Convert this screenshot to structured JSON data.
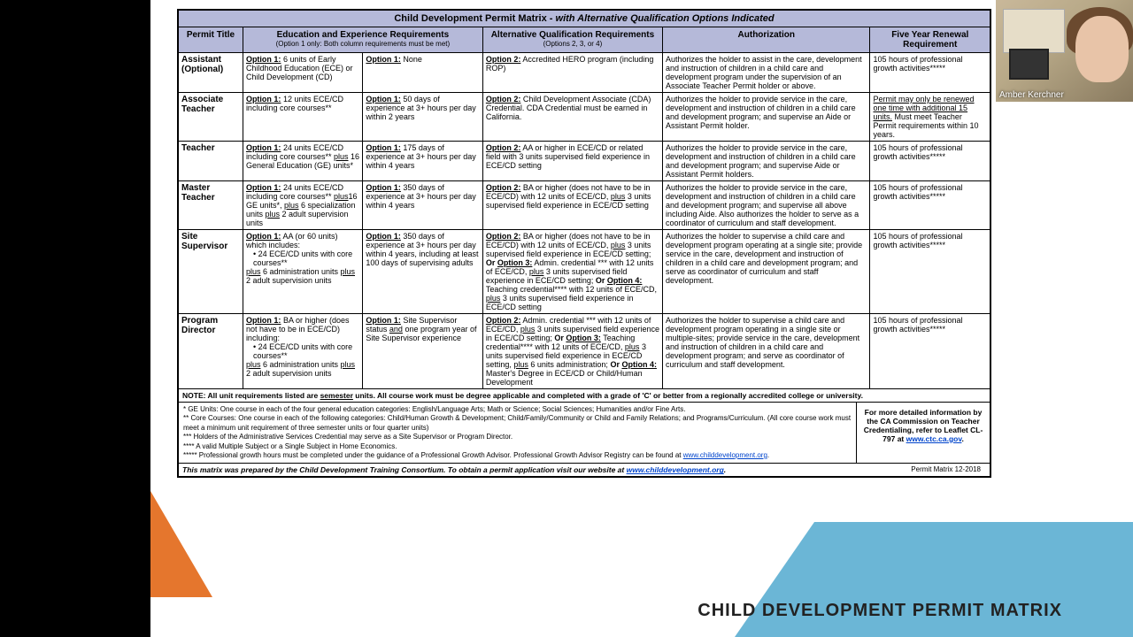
{
  "footerTitle": "CHILD DEVELOPMENT PERMIT MATRIX",
  "webcamName": "Amber Kerchner",
  "title": {
    "main": "Child Development Permit Matrix - ",
    "ital": "with Alternative Qualification Options Indicated"
  },
  "headers": {
    "c1": "Permit Title",
    "c2": "Education and Experience Requirements",
    "c2sub": "(Option 1 only: Both column requirements must be met)",
    "c3": "Alternative Qualification Requirements",
    "c3sub": "(Options 2, 3, or 4)",
    "c4": "Authorization",
    "c5": "Five Year Renewal Requirement"
  },
  "rows": [
    {
      "title": "Assistant (Optional)",
      "eduA": "<span class='u b'>Option 1:</span> 6 units of Early Childhood Education (ECE) or Child Development (CD)",
      "eduB": "<span class='u b'>Option 1:</span> None",
      "alt": "<span class='u b'>Option 2:</span> Accredited HERO program (including ROP)",
      "auth": "Authorizes the holder to assist in the care, development and instruction of children in a child care and development program under the supervision of an Associate Teacher Permit holder or above.",
      "renew": "105 hours of professional growth activities*****"
    },
    {
      "title": "Associate Teacher",
      "eduA": "<span class='u b'>Option 1:</span> 12 units ECE/CD including core courses**",
      "eduB": "<span class='u b'>Option 1:</span> 50 days of experience at 3+ hours per day within 2 years",
      "alt": "<span class='u b'>Option 2:</span> Child Development Associate (CDA) Credential. CDA Credential must be earned in California.",
      "auth": "Authorizes the holder to provide service in the care, development and instruction of children in a child care and development program; and supervise an Aide or Assistant Permit holder.",
      "renew": "<span class='u'>Permit may only be renewed one time with additional 15 units.</span> Must meet Teacher Permit requirements within 10 years."
    },
    {
      "title": "Teacher",
      "eduA": "<span class='u b'>Option 1:</span> 24 units ECE/CD including core courses** <span class='u'>plus</span> 16 General Education (GE) units*",
      "eduB": "<span class='u b'>Option 1:</span> 175 days of experience at 3+ hours per day within 4 years",
      "alt": "<span class='u b'>Option 2:</span> AA or higher in ECE/CD or related field with 3 units supervised field experience in ECE/CD setting",
      "auth": "Authorizes the holder to provide service in the care, development and instruction of children in a child care and development program; and supervise Aide or Assistant Permit holders.",
      "renew": "105 hours of professional growth activities*****"
    },
    {
      "title": "Master Teacher",
      "eduA": "<span class='u b'>Option 1:</span> 24 units ECE/CD including core courses** <span class='u'>plus</span>16 GE units*, <span class='u'>plus</span> 6 specialization units <span class='u'>plus</span> 2 adult supervision units",
      "eduB": "<span class='u b'>Option 1:</span> 350 days of experience at 3+ hours per day within 4 years",
      "alt": "<span class='u b'>Option 2:</span> BA or higher (does not have to be in ECE/CD) with 12 units of ECE/CD, <span class='u'>plus</span> 3 units supervised field experience in ECE/CD setting",
      "auth": "Authorizes the holder to provide service in the care, development and instruction of children in a child care and development program; and supervise all above including Aide. Also authorizes the holder to serve as a coordinator of curriculum and staff development.",
      "renew": "105 hours of professional growth activities*****"
    },
    {
      "title": "Site Supervisor",
      "eduA": "<span class='u b'>Option 1:</span> AA (or 60 units) which includes:<ul class='dash'><li>24 ECE/CD units with core courses**</li></ul><span class='u'>plus</span> 6 administration units <span class='u'>plus</span> 2 adult supervision units",
      "eduB": "<span class='u b'>Option 1:</span> 350 days of experience at 3+ hours per day within 4 years, including at least 100 days of supervising adults",
      "alt": "<span class='u b'>Option 2:</span> BA or higher (does not have to be in ECE/CD) with 12 units of ECE/CD, <span class='u'>plus</span> 3 units supervised field experience in ECE/CD setting; <b>Or <span class='u'>Option 3:</span></b> Admin. credential *** with 12 units of ECE/CD, <span class='u'>plus</span> 3 units supervised field experience in ECE/CD setting; <b>Or <span class='u'>Option 4:</span></b> Teaching credential**** with 12 units of ECE/CD, <span class='u'>plus</span> 3 units supervised field experience in ECE/CD setting",
      "auth": "Authorizes the holder to supervise a child care and development program operating at a single site; provide service in the care, development and instruction of children in a child care and development program; and serve as coordinator of curriculum and staff development.",
      "renew": "105 hours of professional growth activities*****"
    },
    {
      "title": "Program Director",
      "eduA": "<span class='u b'>Option 1:</span> BA or higher (does not have to be in ECE/CD) including:<ul class='dash'><li>24 ECE/CD units with core courses**</li></ul><span class='u'>plus</span> 6 administration units <span class='u'>plus</span> 2 adult supervision units",
      "eduB": "<span class='u b'>Option 1:</span> Site Supervisor status <span class='u'>and</span> one program year of Site Supervisor experience",
      "alt": "<span class='u b'>Option 2:</span> Admin. credential *** with 12 units of ECE/CD, <span class='u'>plus</span> 3 units supervised field experience in ECE/CD setting; <b>Or <span class='u'>Option 3:</span></b> Teaching credential**** with 12 units of ECE/CD, <span class='u'>plus</span> 3 units supervised field experience in ECE/CD setting, <span class='u'>plus</span> 6 units administration; <b>Or <span class='u'>Option 4:</span></b> Master's Degree in ECE/CD or Child/Human Development",
      "auth": "Authorizes the holder to supervise a child care and development program operating in a single site or multiple-sites; provide service in the care, development and instruction of children in a child care and development program; and serve as coordinator of curriculum and staff development.",
      "renew": "105 hours of professional growth activities*****"
    }
  ],
  "note": "NOTE: All unit requirements listed are <u>semester</u> units.  All course work must be degree applicable and completed with a grade of 'C' or better from a regionally accredited college or university.",
  "footnotes": [
    "*     GE Units:  One course in each of the four general education categories: English/Language Arts; Math or Science; Social Sciences; Humanities and/or Fine Arts.",
    "**    Core Courses: One course in each of the following categories: Child/Human Growth & Development; Child/Family/Community or Child and Family Relations; and Programs/Curriculum. (All core course work must meet a minimum unit requirement of three semester units or four quarter units)",
    "***   Holders of the Administrative Services Credential may serve as a Site Supervisor or Program Director.",
    "****  A valid Multiple Subject or a Single Subject in Home Economics.",
    "***** Professional growth hours must be completed under the guidance of a Professional Growth Advisor.  Professional Growth Advisor Registry can be found at <a class='link'>www.childdevelopment.org</a>."
  ],
  "infoBox": "For more detailed information by the CA Commission on Teacher Credentialing, refer to Leaflet CL-797 at <a class='link'>www.ctc.ca.gov</a>.",
  "bottom": "This matrix was prepared by the Child Development Training Consortium.  To obtain a permit application visit our website at <a class='link'>www.childdevelopment.org</a>.",
  "version": "Permit Matrix 12-2018",
  "colors": {
    "headerBg": "#b5b9d9",
    "orange": "#e5762d",
    "blue": "#6bb6d6"
  }
}
